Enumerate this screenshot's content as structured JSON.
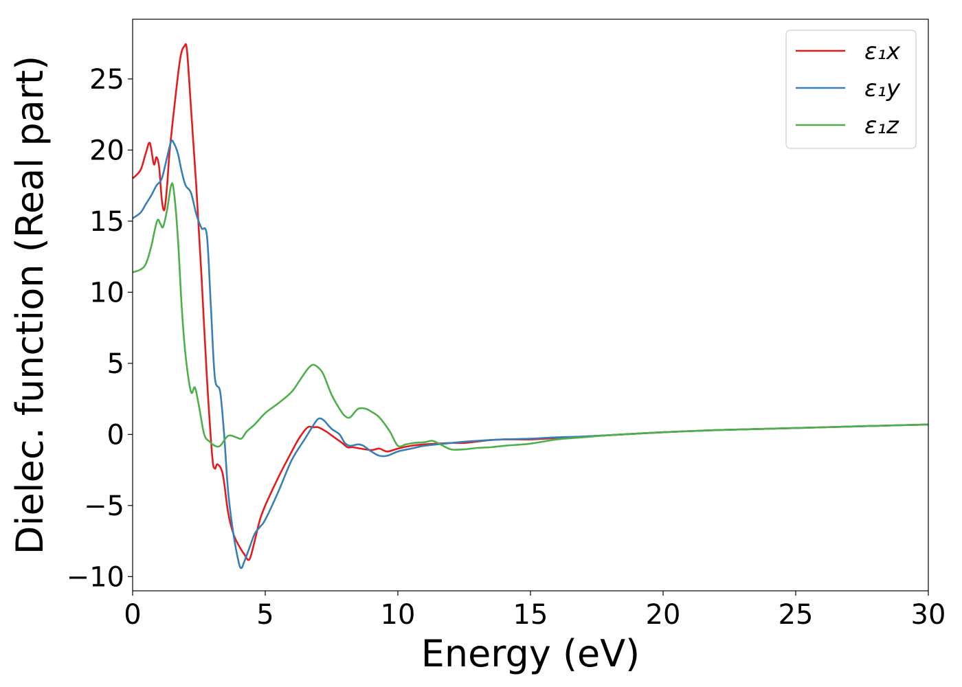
{
  "chart_data": {
    "type": "line",
    "title": "",
    "xlabel": "Energy (eV)",
    "ylabel": "Dielec. function (Real part)",
    "xlim": [
      0,
      30
    ],
    "ylim": [
      -11,
      29.2
    ],
    "xticks": [
      0,
      5,
      10,
      15,
      20,
      25,
      30
    ],
    "xtick_labels": [
      "0",
      "5",
      "10",
      "15",
      "20",
      "25",
      "30"
    ],
    "yticks": [
      -10,
      -5,
      0,
      5,
      10,
      15,
      20,
      25
    ],
    "ytick_labels": [
      "−10",
      "−5",
      "0",
      "5",
      "10",
      "15",
      "20",
      "25"
    ],
    "grid": false,
    "legend_position": "top-right",
    "series": [
      {
        "name": "ε₁x",
        "color": "#e41a1c",
        "x": [
          0,
          0.3,
          0.5,
          0.65,
          0.8,
          0.9,
          1.0,
          1.1,
          1.2,
          1.3,
          1.4,
          1.6,
          1.8,
          1.95,
          2.05,
          2.2,
          2.4,
          2.6,
          2.8,
          3.0,
          3.1,
          3.2,
          3.4,
          3.6,
          3.8,
          4.0,
          4.2,
          4.4,
          4.6,
          4.8,
          5.0,
          5.5,
          6.0,
          6.3,
          6.6,
          6.8,
          7.0,
          7.3,
          7.6,
          7.9,
          8.1,
          8.3,
          8.6,
          9.0,
          9.3,
          9.6,
          10.0,
          10.5,
          11.0,
          11.5,
          12.0,
          12.5,
          13.0,
          13.5,
          14.0,
          15.0,
          16.0,
          17.0,
          18.0,
          20.0,
          22.0,
          24.0,
          26.0,
          28.0,
          30.0
        ],
        "y": [
          18.0,
          18.6,
          19.8,
          20.5,
          19.0,
          19.5,
          18.8,
          16.5,
          15.8,
          17.5,
          20.0,
          23.5,
          26.5,
          27.3,
          27.0,
          23.0,
          17.5,
          11.0,
          4.0,
          -1.5,
          -2.4,
          -2.1,
          -2.8,
          -5.5,
          -7.0,
          -7.8,
          -8.4,
          -8.8,
          -7.5,
          -6.0,
          -5.0,
          -3.0,
          -1.2,
          -0.2,
          0.5,
          0.5,
          0.5,
          0.2,
          -0.2,
          -0.6,
          -0.9,
          -0.9,
          -1.0,
          -1.1,
          -1.0,
          -1.2,
          -1.0,
          -0.8,
          -0.7,
          -0.65,
          -0.6,
          -0.6,
          -0.5,
          -0.4,
          -0.35,
          -0.35,
          -0.25,
          -0.15,
          -0.05,
          0.15,
          0.3,
          0.4,
          0.5,
          0.6,
          0.7
        ]
      },
      {
        "name": "ε₁y",
        "color": "#377eb8",
        "x": [
          0,
          0.3,
          0.5,
          0.7,
          0.9,
          1.1,
          1.3,
          1.45,
          1.55,
          1.7,
          1.85,
          2.0,
          2.2,
          2.4,
          2.6,
          2.8,
          2.95,
          3.1,
          3.3,
          3.45,
          3.6,
          3.8,
          4.0,
          4.1,
          4.2,
          4.4,
          4.6,
          4.8,
          5.0,
          5.5,
          6.0,
          6.5,
          6.8,
          7.0,
          7.2,
          7.5,
          7.8,
          8.0,
          8.2,
          8.5,
          8.7,
          9.0,
          9.3,
          9.6,
          10.0,
          10.5,
          11.0,
          12.0,
          13.0,
          14.0,
          15.0,
          16.0,
          17.0,
          18.0,
          20.0,
          22.0,
          24.0,
          26.0,
          28.0,
          30.0
        ],
        "y": [
          15.2,
          15.6,
          16.2,
          16.8,
          17.5,
          18.0,
          19.5,
          20.6,
          20.5,
          19.8,
          18.5,
          17.5,
          17.0,
          15.5,
          14.5,
          14.0,
          9.0,
          4.0,
          3.0,
          0.0,
          -4.0,
          -7.0,
          -9.0,
          -9.4,
          -9.0,
          -8.0,
          -7.0,
          -6.5,
          -6.0,
          -4.0,
          -1.8,
          -0.3,
          0.6,
          1.1,
          1.0,
          0.4,
          0.0,
          -0.6,
          -0.8,
          -0.7,
          -0.8,
          -1.2,
          -1.5,
          -1.5,
          -1.2,
          -1.0,
          -0.8,
          -0.6,
          -0.45,
          -0.35,
          -0.3,
          -0.2,
          -0.15,
          -0.05,
          0.15,
          0.3,
          0.4,
          0.5,
          0.6,
          0.7
        ]
      },
      {
        "name": "ε₁z",
        "color": "#4daf4a",
        "x": [
          0,
          0.3,
          0.5,
          0.7,
          0.85,
          0.95,
          1.05,
          1.15,
          1.3,
          1.45,
          1.55,
          1.7,
          1.85,
          2.0,
          2.2,
          2.35,
          2.5,
          2.7,
          2.9,
          3.1,
          3.3,
          3.6,
          3.9,
          4.1,
          4.3,
          4.6,
          5.0,
          5.5,
          6.0,
          6.3,
          6.6,
          6.8,
          7.0,
          7.2,
          7.5,
          7.8,
          8.0,
          8.2,
          8.5,
          8.8,
          9.0,
          9.3,
          9.7,
          10.0,
          10.3,
          10.6,
          11.0,
          11.3,
          11.6,
          12.0,
          12.5,
          13.0,
          13.5,
          14.0,
          15.0,
          16.0,
          17.0,
          18.0,
          20.0,
          22.0,
          24.0,
          26.0,
          28.0,
          30.0
        ],
        "y": [
          11.4,
          11.6,
          12.0,
          13.2,
          14.5,
          15.1,
          14.8,
          14.6,
          15.8,
          17.5,
          17.2,
          14.0,
          9.0,
          5.5,
          3.0,
          3.3,
          2.0,
          0.0,
          -0.5,
          -0.8,
          -0.8,
          -0.1,
          -0.2,
          -0.3,
          0.2,
          0.7,
          1.5,
          2.2,
          3.0,
          3.8,
          4.6,
          4.9,
          4.7,
          4.2,
          2.8,
          1.8,
          1.3,
          1.2,
          1.8,
          1.8,
          1.6,
          1.2,
          0.2,
          -0.8,
          -0.7,
          -0.6,
          -0.55,
          -0.45,
          -0.7,
          -1.05,
          -1.05,
          -0.95,
          -0.9,
          -0.8,
          -0.65,
          -0.35,
          -0.2,
          -0.05,
          0.15,
          0.3,
          0.4,
          0.5,
          0.6,
          0.7
        ]
      }
    ]
  }
}
